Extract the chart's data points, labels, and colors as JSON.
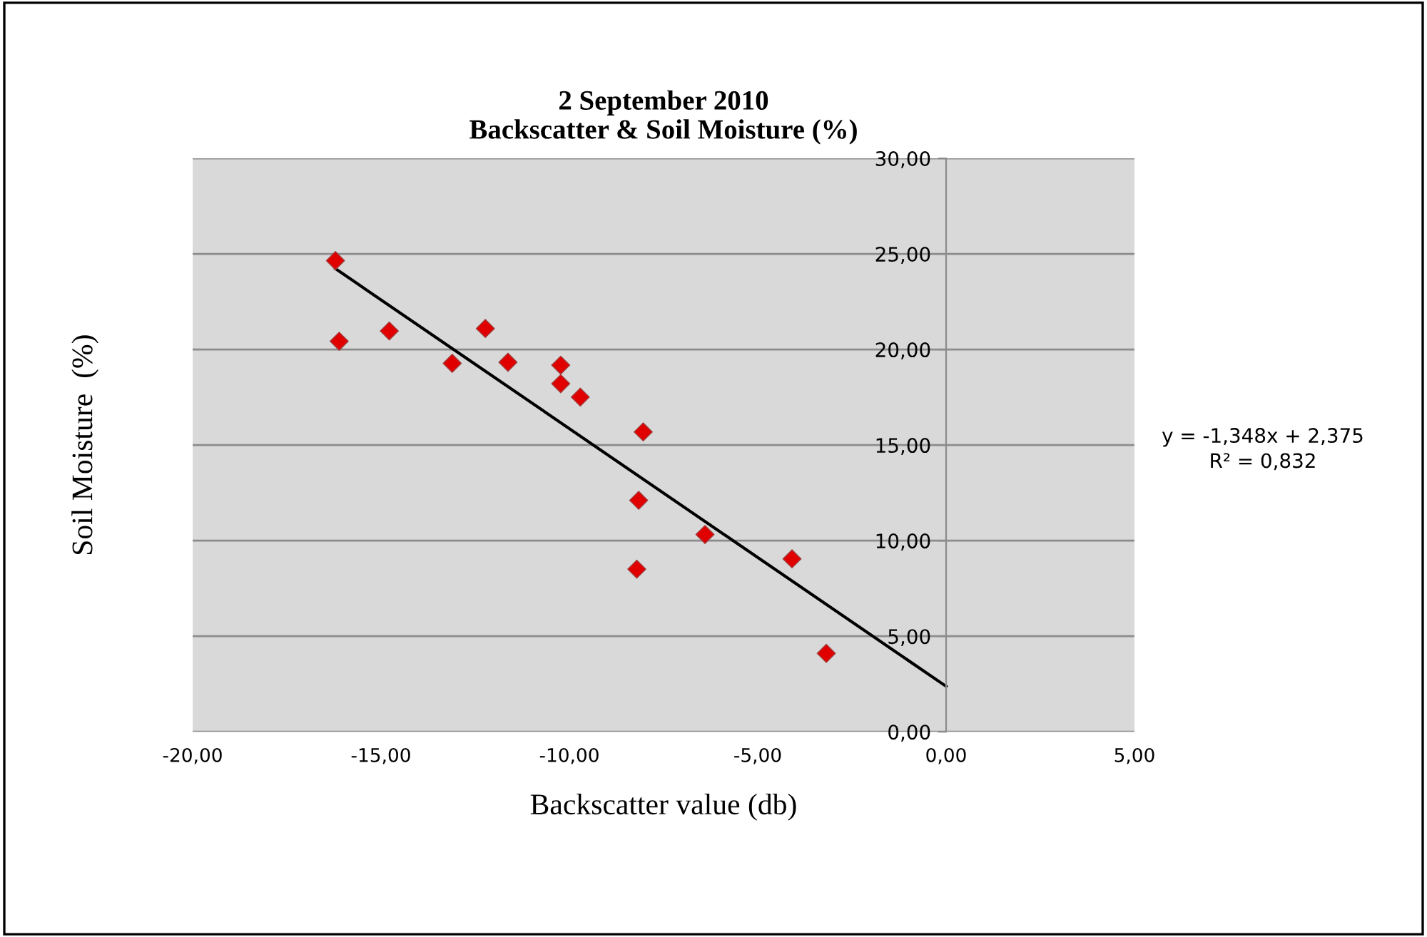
{
  "chart_data": {
    "type": "scatter",
    "title": "2 September 2010\nBackscatter & Soil Moisture (%)",
    "xlabel": "Backscatter value (db)",
    "ylabel": "Soil Moisture  (%)",
    "x": [
      -16.21,
      -16.11,
      -14.78,
      -13.11,
      -12.23,
      -11.63,
      -10.23,
      -10.23,
      -9.71,
      -8.04,
      -8.16,
      -8.21,
      -6.4,
      -4.09,
      -3.18
    ],
    "series": [
      {
        "color": "#e00000",
        "marker": "diamond",
        "values": [
          24.65,
          20.43,
          20.97,
          19.28,
          21.1,
          19.33,
          19.18,
          18.21,
          17.51,
          15.69,
          12.11,
          8.51,
          10.32,
          9.05,
          4.1
        ]
      },
      {
        "type": "line",
        "color": "#000000",
        "marker": "none",
        "line_style": "solid",
        "x": [
          -16.21,
          0
        ],
        "values": [
          24.23,
          2.38
        ]
      }
    ],
    "annotations": [
      "y = -1,348x + 2,375\nR² = 0,832"
    ],
    "xlim": [
      -20,
      5
    ],
    "ylim": [
      0,
      30
    ],
    "xticks": [
      {
        "value": -20,
        "label": "-20,00"
      },
      {
        "value": -15,
        "label": "-15,00"
      },
      {
        "value": -10,
        "label": "-10,00"
      },
      {
        "value": -5,
        "label": "-5,00"
      },
      {
        "value": 0,
        "label": "0,00"
      },
      {
        "value": 5,
        "label": "5,00"
      }
    ],
    "yticks": [
      {
        "value": 0,
        "label": "0,00"
      },
      {
        "value": 5,
        "label": "5,00"
      },
      {
        "value": 10,
        "label": "10,00"
      },
      {
        "value": 15,
        "label": "15,00"
      },
      {
        "value": 20,
        "label": "20,00"
      },
      {
        "value": 25,
        "label": "25,00"
      },
      {
        "value": 30,
        "label": "30,00"
      }
    ],
    "grid": "y",
    "legend": false
  }
}
